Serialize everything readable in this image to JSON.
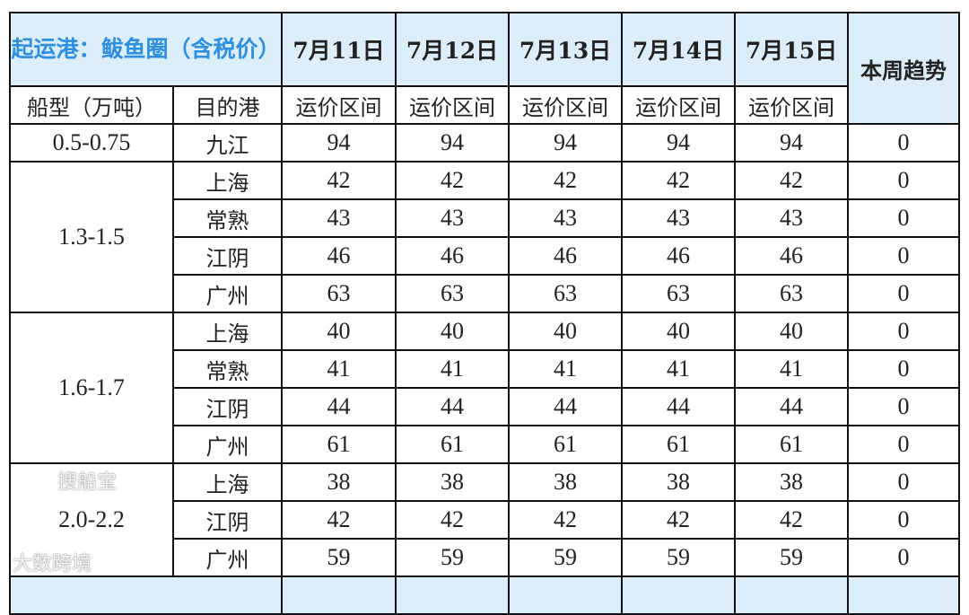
{
  "header": {
    "title": "起运港：鲅鱼圈（含税价）",
    "dates": [
      "7月11日",
      "7月12日",
      "7月13日",
      "7月14日",
      "7月15日"
    ],
    "trend": "本周趋势",
    "ship_type": "船型（万吨）",
    "destination": "目的港",
    "range": "运价区间"
  },
  "groups": [
    {
      "ship": "0.5-0.75",
      "rows": [
        {
          "port": "九江",
          "values": [
            "94",
            "94",
            "94",
            "94",
            "94"
          ],
          "trend": "0"
        }
      ]
    },
    {
      "ship": "1.3-1.5",
      "rows": [
        {
          "port": "上海",
          "values": [
            "42",
            "42",
            "42",
            "42",
            "42"
          ],
          "trend": "0"
        },
        {
          "port": "常熟",
          "values": [
            "43",
            "43",
            "43",
            "43",
            "43"
          ],
          "trend": "0"
        },
        {
          "port": "江阴",
          "values": [
            "46",
            "46",
            "46",
            "46",
            "46"
          ],
          "trend": "0"
        },
        {
          "port": "广州",
          "values": [
            "63",
            "63",
            "63",
            "63",
            "63"
          ],
          "trend": "0"
        }
      ]
    },
    {
      "ship": "1.6-1.7",
      "rows": [
        {
          "port": "上海",
          "values": [
            "40",
            "40",
            "40",
            "40",
            "40"
          ],
          "trend": "0"
        },
        {
          "port": "常熟",
          "values": [
            "41",
            "41",
            "41",
            "41",
            "41"
          ],
          "trend": "0"
        },
        {
          "port": "江阴",
          "values": [
            "44",
            "44",
            "44",
            "44",
            "44"
          ],
          "trend": "0"
        },
        {
          "port": "广州",
          "values": [
            "61",
            "61",
            "61",
            "61",
            "61"
          ],
          "trend": "0"
        }
      ]
    },
    {
      "ship": "2.0-2.2",
      "rows": [
        {
          "port": "上海",
          "values": [
            "38",
            "38",
            "38",
            "38",
            "38"
          ],
          "trend": "0"
        },
        {
          "port": "江阴",
          "values": [
            "42",
            "42",
            "42",
            "42",
            "42"
          ],
          "trend": "0"
        },
        {
          "port": "广州",
          "values": [
            "59",
            "59",
            "59",
            "59",
            "59"
          ],
          "trend": "0"
        }
      ]
    }
  ],
  "watermarks": {
    "left": "大数跨境",
    "right": "搜船宝"
  }
}
